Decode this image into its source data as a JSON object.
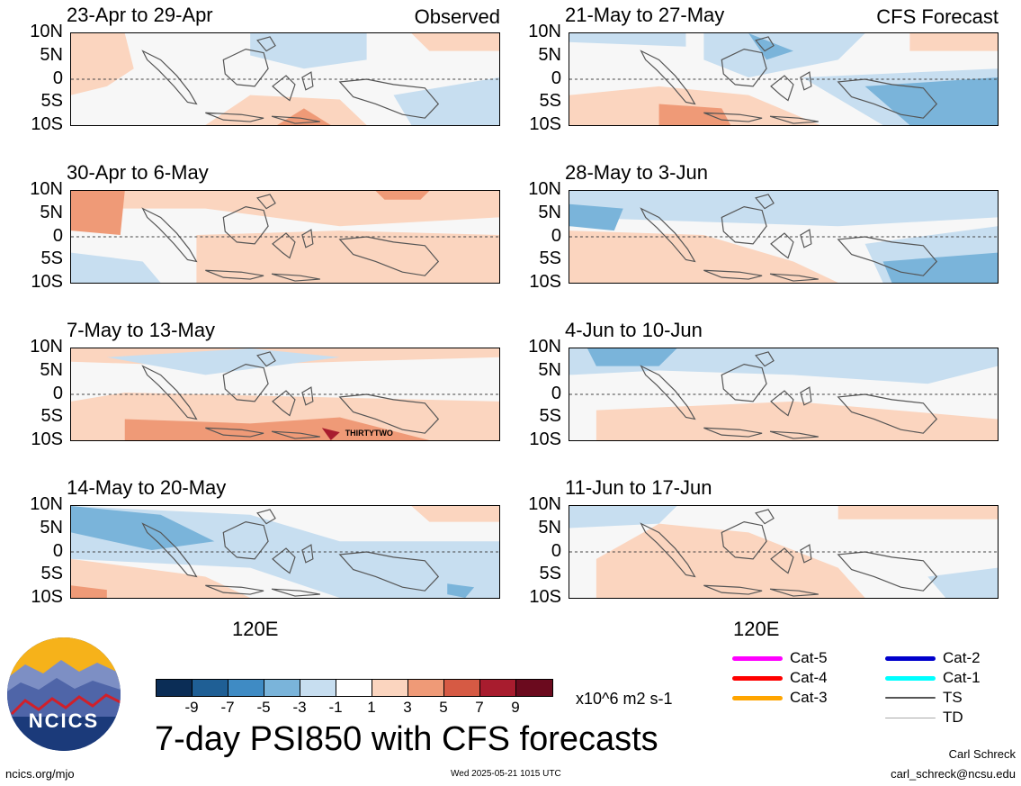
{
  "panels": [
    {
      "id": "obs-1",
      "title": "23-Apr to 29-Apr",
      "label": "Observed"
    },
    {
      "id": "obs-2",
      "title": "30-Apr to 6-May",
      "label": ""
    },
    {
      "id": "obs-3",
      "title": "7-May to 13-May",
      "label": "",
      "annotation": "THIRTYTWO"
    },
    {
      "id": "obs-4",
      "title": "14-May to 20-May",
      "label": ""
    },
    {
      "id": "fc-1",
      "title": "21-May to 27-May",
      "label": "CFS Forecast"
    },
    {
      "id": "fc-2",
      "title": "28-May to 3-Jun",
      "label": ""
    },
    {
      "id": "fc-3",
      "title": "4-Jun to 10-Jun",
      "label": ""
    },
    {
      "id": "fc-4",
      "title": "11-Jun to 17-Jun",
      "label": ""
    }
  ],
  "lat_labels": [
    "10N",
    "5N",
    "0",
    "5S",
    "10S"
  ],
  "lon_label": "120E",
  "colorbar": {
    "tick_labels": [
      "-9",
      "-7",
      "-5",
      "-3",
      "-1",
      "1",
      "3",
      "5",
      "7",
      "9"
    ],
    "colors": [
      "#0b2d56",
      "#1f5f95",
      "#3f8bc4",
      "#7ab4da",
      "#c7def0",
      "#ffffff",
      "#fbd5bf",
      "#ef9a77",
      "#d65a44",
      "#a81c2e",
      "#6b0a1e"
    ],
    "units": "x10^6 m2 s-1"
  },
  "title": "7-day PSI850 with CFS forecasts",
  "storm_legend": [
    {
      "label": "Cat-5",
      "color": "#ff00ff"
    },
    {
      "label": "Cat-4",
      "color": "#ff0000"
    },
    {
      "label": "Cat-3",
      "color": "#ffa500"
    },
    {
      "label": "Cat-2",
      "color": "#0000cc"
    },
    {
      "label": "Cat-1",
      "color": "#00ffff"
    },
    {
      "label": "TS",
      "color": "#555555"
    },
    {
      "label": "TD",
      "color": "#aaaaaa"
    }
  ],
  "logo_text": "NCICS",
  "footer": {
    "url": "ncics.org/mjo",
    "timestamp": "Wed 2025-05-21 1015 UTC",
    "author": "Carl Schreck",
    "email": "carl_schreck@ncsu.edu"
  }
}
